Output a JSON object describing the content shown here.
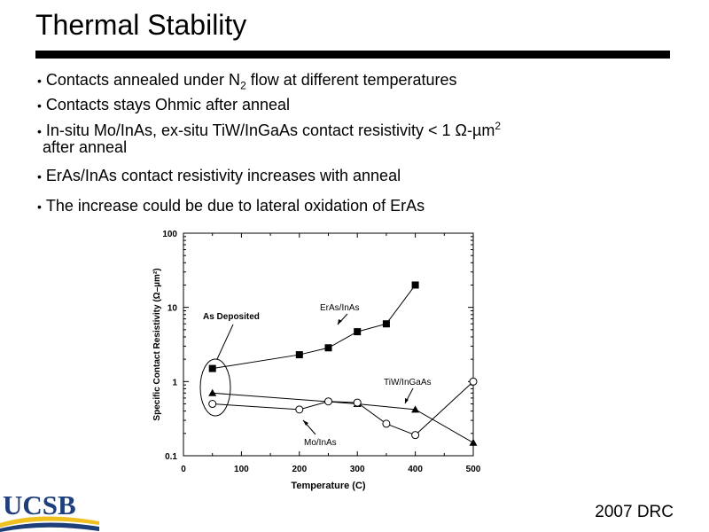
{
  "slide": {
    "title": "Thermal Stability",
    "bullets": [
      {
        "pre": "Contacts annealed under N",
        "sub": "2",
        "post": " flow at different temperatures"
      },
      {
        "text": "Contacts stays Ohmic after anneal"
      },
      {
        "pre": "In-situ Mo/InAs, ex-situ TiW/InGaAs contact resistivity < 1 Ω-µm",
        "sup": "2",
        "cont": "after anneal"
      },
      {
        "text": "ErAs/InAs contact resistivity increases with anneal"
      },
      {
        "text": "The increase could be due to lateral oxidation of ErAs"
      }
    ],
    "footer": "2007 DRC",
    "logo_text": "UCSB"
  },
  "chart_data": {
    "type": "line",
    "xlabel": "Temperature (C)",
    "ylabel": "Specific Contact Resistivity (Ω–µm²)",
    "xlim": [
      0,
      500
    ],
    "ylim": [
      0.1,
      100
    ],
    "yscale": "log",
    "xticks": [
      0,
      100,
      200,
      300,
      400,
      500
    ],
    "yticks": [
      0.1,
      1,
      10,
      100
    ],
    "grid": false,
    "series": [
      {
        "name": "ErAs/InAs",
        "marker": "square-filled",
        "x": [
          50,
          200,
          250,
          300,
          350,
          400
        ],
        "y": [
          1.5,
          2.3,
          2.85,
          4.7,
          6.0,
          20
        ]
      },
      {
        "name": "TiW/InGaAs",
        "marker": "triangle-filled",
        "x": [
          50,
          300,
          400,
          500
        ],
        "y": [
          0.7,
          0.5,
          0.42,
          0.15
        ]
      },
      {
        "name": "Mo/InAs",
        "marker": "circle-open",
        "x": [
          50,
          200,
          250,
          300,
          350,
          400,
          500
        ],
        "y": [
          0.5,
          0.42,
          0.54,
          0.52,
          0.27,
          0.19,
          1.0
        ]
      }
    ],
    "annotations": [
      {
        "text": "As Deposited"
      },
      {
        "text": "ErAs/InAs"
      },
      {
        "text": "TiW/InGaAs"
      },
      {
        "text": "Mo/InAs"
      }
    ]
  }
}
